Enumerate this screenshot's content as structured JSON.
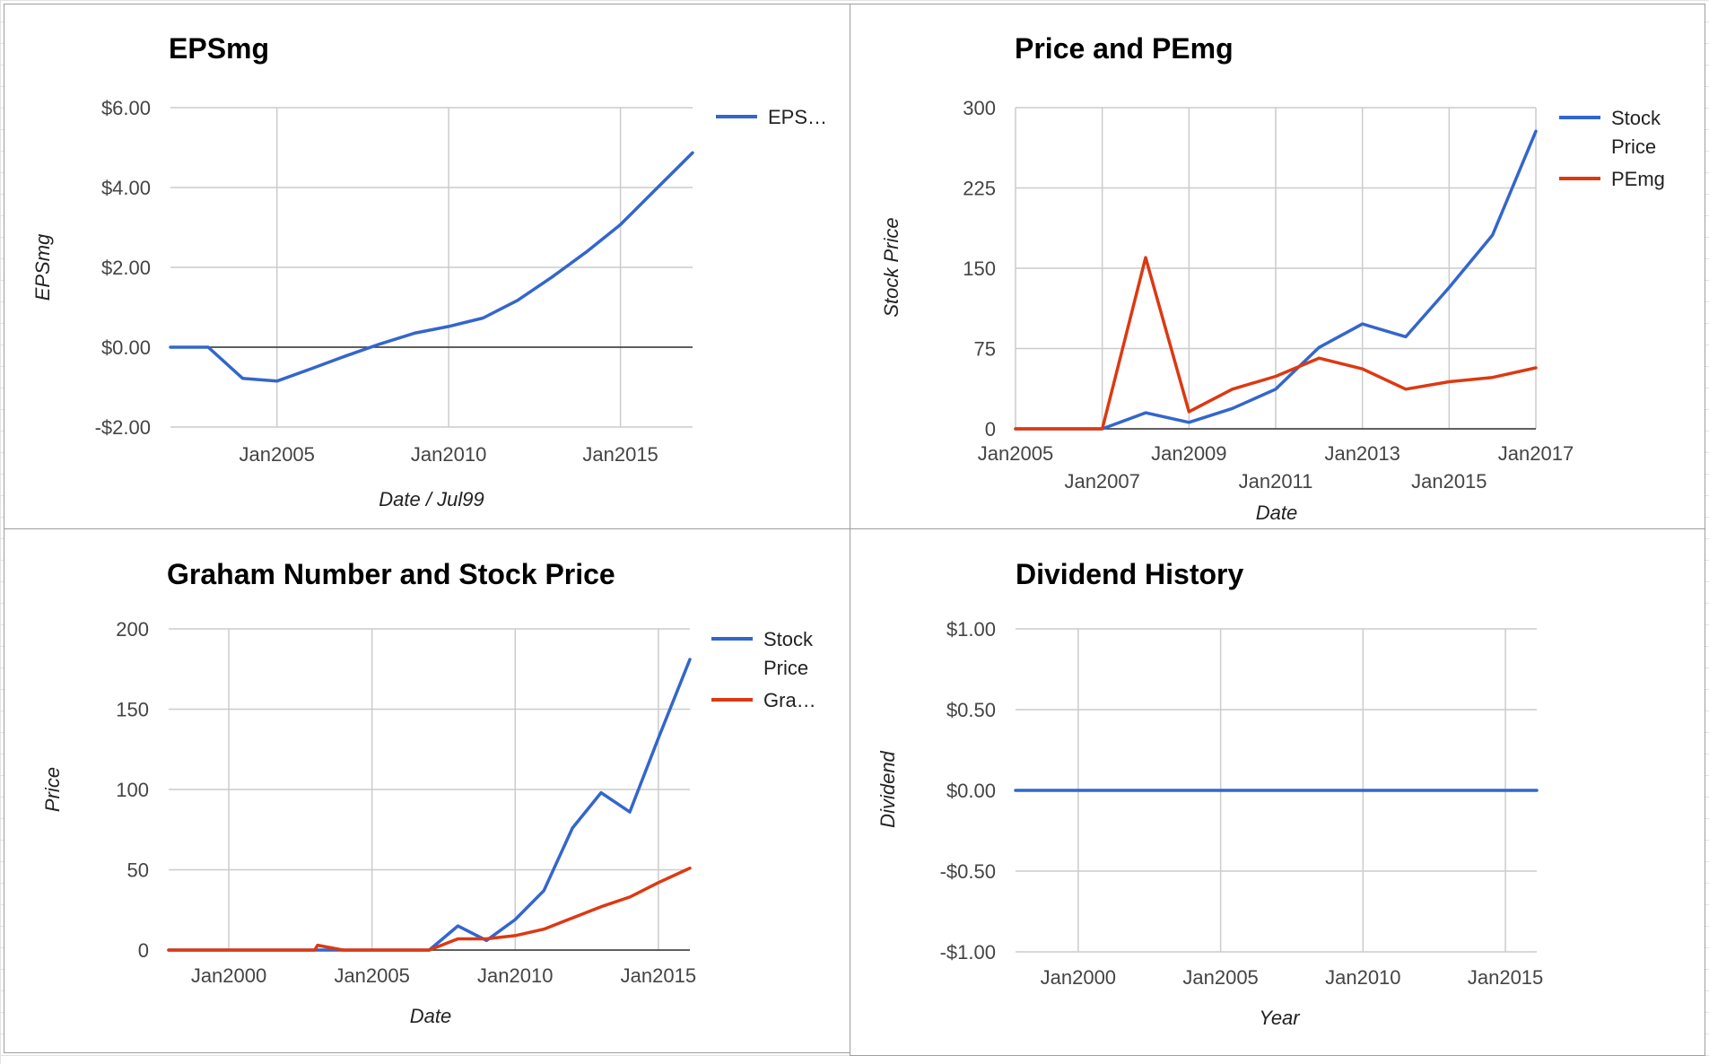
{
  "colors": {
    "blue": "#3366cc",
    "red": "#dc3912"
  },
  "chart_data": [
    {
      "type": "line",
      "title": "EPSmg",
      "xlabel": "Date / Jul99",
      "ylabel": "EPSmg",
      "legend": [
        "EPS…"
      ],
      "yticks": [
        {
          "v": 6,
          "label": "$6.00"
        },
        {
          "v": 4,
          "label": "$4.00"
        },
        {
          "v": 2,
          "label": "$2.00"
        },
        {
          "v": 0,
          "label": "$0.00"
        },
        {
          "v": -2,
          "label": "-$2.00"
        }
      ],
      "xticks": [
        {
          "v": 2005,
          "label": "Jan2005"
        },
        {
          "v": 2010,
          "label": "Jan2010"
        },
        {
          "v": 2015,
          "label": "Jan2015"
        }
      ],
      "xlim": [
        2001.9,
        2017.1
      ],
      "ylim": [
        -2,
        6
      ],
      "series": [
        {
          "name": "EPSmg",
          "color": "blue",
          "x": [
            2001.9,
            2003,
            2004,
            2005,
            2006,
            2007,
            2008,
            2009,
            2010,
            2011,
            2012,
            2013,
            2014,
            2015,
            2016,
            2017.1
          ],
          "y": [
            0,
            0,
            -0.78,
            -0.85,
            -0.54,
            -0.22,
            0.08,
            0.35,
            0.52,
            0.73,
            1.17,
            1.75,
            2.38,
            3.07,
            3.93,
            4.87
          ]
        }
      ]
    },
    {
      "type": "line",
      "title": "Price and PEmg",
      "xlabel": "Date",
      "ylabel": "Stock Price",
      "legend": [
        "Stock Price",
        "PEmg"
      ],
      "yticks": [
        {
          "v": 300,
          "label": "300"
        },
        {
          "v": 225,
          "label": "225"
        },
        {
          "v": 150,
          "label": "150"
        },
        {
          "v": 75,
          "label": "75"
        },
        {
          "v": 0,
          "label": "0"
        }
      ],
      "xticks": [
        {
          "v": 2005,
          "label": "Jan2005",
          "row": 0
        },
        {
          "v": 2007,
          "label": "Jan2007",
          "row": 1
        },
        {
          "v": 2009,
          "label": "Jan2009",
          "row": 0
        },
        {
          "v": 2011,
          "label": "Jan2011",
          "row": 1
        },
        {
          "v": 2013,
          "label": "Jan2013",
          "row": 0
        },
        {
          "v": 2015,
          "label": "Jan2015",
          "row": 1
        },
        {
          "v": 2017,
          "label": "Jan2017",
          "row": 0
        }
      ],
      "xlim": [
        2005,
        2017
      ],
      "ylim": [
        0,
        300
      ],
      "series": [
        {
          "name": "Stock Price",
          "color": "blue",
          "x": [
            2005,
            2006,
            2007,
            2008,
            2009,
            2010,
            2011,
            2012,
            2013,
            2014,
            2015,
            2016,
            2017
          ],
          "y": [
            0,
            0,
            0,
            15,
            6,
            19,
            37,
            76,
            98,
            86,
            132,
            181,
            278
          ]
        },
        {
          "name": "PEmg",
          "color": "red",
          "x": [
            2005,
            2006,
            2007,
            2008,
            2009,
            2010,
            2011,
            2012,
            2013,
            2014,
            2015,
            2016,
            2017
          ],
          "y": [
            0,
            0,
            0,
            160,
            16,
            37,
            49,
            66,
            56,
            37,
            44,
            48,
            57
          ]
        }
      ]
    },
    {
      "type": "line",
      "title": "Graham Number and Stock Price",
      "xlabel": "Date",
      "ylabel": "Price",
      "legend": [
        "Stock Price",
        "Gra…"
      ],
      "yticks": [
        {
          "v": 200,
          "label": "200"
        },
        {
          "v": 150,
          "label": "150"
        },
        {
          "v": 100,
          "label": "100"
        },
        {
          "v": 50,
          "label": "50"
        },
        {
          "v": 0,
          "label": "0"
        }
      ],
      "xticks": [
        {
          "v": 2000,
          "label": "Jan2000"
        },
        {
          "v": 2005,
          "label": "Jan2005"
        },
        {
          "v": 2010,
          "label": "Jan2010"
        },
        {
          "v": 2015,
          "label": "Jan2015"
        }
      ],
      "xlim": [
        1997.9,
        2016.1
      ],
      "ylim": [
        0,
        200
      ],
      "series": [
        {
          "name": "Stock Price",
          "color": "blue",
          "x": [
            1997.9,
            2003,
            2004,
            2005,
            2006,
            2007,
            2008,
            2009,
            2010,
            2011,
            2012,
            2013,
            2014,
            2015,
            2016.1
          ],
          "y": [
            0,
            0,
            0,
            0,
            0,
            0,
            15,
            6,
            19,
            37,
            76,
            98,
            86,
            132,
            181
          ]
        },
        {
          "name": "Graham Number",
          "color": "red",
          "x": [
            1997.9,
            2003,
            2003.1,
            2004,
            2005,
            2006,
            2007,
            2008,
            2009,
            2010,
            2011,
            2012,
            2013,
            2014,
            2015,
            2016.1
          ],
          "y": [
            0,
            0,
            3,
            0,
            0,
            0,
            0,
            7,
            7,
            9,
            13,
            20,
            27,
            33,
            42,
            51
          ]
        }
      ]
    },
    {
      "type": "line",
      "title": "Dividend History",
      "xlabel": "Year",
      "ylabel": "Dividend",
      "legend": [],
      "yticks": [
        {
          "v": 1,
          "label": "$1.00"
        },
        {
          "v": 0.5,
          "label": "$0.50"
        },
        {
          "v": 0,
          "label": "$0.00"
        },
        {
          "v": -0.5,
          "label": "-$0.50"
        },
        {
          "v": -1,
          "label": "-$1.00"
        }
      ],
      "xticks": [
        {
          "v": 2000,
          "label": "Jan2000"
        },
        {
          "v": 2005,
          "label": "Jan2005"
        },
        {
          "v": 2010,
          "label": "Jan2010"
        },
        {
          "v": 2015,
          "label": "Jan2015"
        }
      ],
      "xlim": [
        1997.8,
        2016.1
      ],
      "ylim": [
        -1,
        1
      ],
      "series": [
        {
          "name": "Dividend",
          "color": "blue",
          "x": [
            1997.8,
            2016.1
          ],
          "y": [
            0,
            0
          ]
        }
      ]
    }
  ]
}
